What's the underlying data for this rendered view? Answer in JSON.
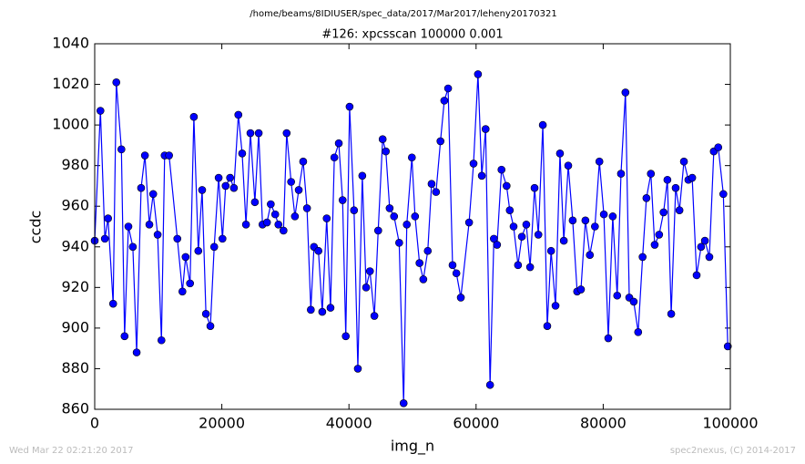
{
  "chart_data": {
    "type": "line",
    "title": "/home/beams/8IDIUSER/spec_data/2017/Mar2017/leheny20170321",
    "subtitle": "#126: xpcsscan 100000 0.001",
    "xlabel": "img_n",
    "ylabel": "ccdc",
    "footer_left": "Wed Mar 22 02:21:20 2017",
    "footer_right": "spec2nexus, (C) 2014-2017",
    "xlim": [
      0,
      100000
    ],
    "xticks": [
      0,
      20000,
      40000,
      60000,
      80000,
      100000
    ],
    "ylim": [
      860,
      1040
    ],
    "yticks": [
      860,
      880,
      900,
      920,
      940,
      960,
      980,
      1000,
      1020,
      1040
    ],
    "grid": false,
    "x": [
      0,
      900,
      1600,
      2100,
      2900,
      3400,
      4200,
      4700,
      5300,
      6000,
      6600,
      7300,
      7900,
      8600,
      9200,
      9900,
      10500,
      11000,
      11700,
      13000,
      13800,
      14300,
      15000,
      15600,
      16300,
      16900,
      17500,
      18200,
      18800,
      19500,
      20100,
      20600,
      21300,
      21900,
      22600,
      23200,
      23800,
      24500,
      25200,
      25800,
      26400,
      27100,
      27700,
      28400,
      28900,
      29700,
      30200,
      30900,
      31500,
      32100,
      32800,
      33400,
      34000,
      34500,
      35200,
      35800,
      36500,
      37100,
      37700,
      38400,
      39000,
      39500,
      40100,
      40800,
      41400,
      42100,
      42700,
      43300,
      44000,
      44600,
      45300,
      45800,
      46400,
      47100,
      47900,
      48600,
      49100,
      49900,
      50400,
      51100,
      51700,
      52400,
      53000,
      53700,
      54400,
      55000,
      55600,
      56300,
      56900,
      57600,
      58900,
      59600,
      60300,
      60900,
      61500,
      62200,
      62800,
      63300,
      64000,
      64800,
      65300,
      65900,
      66600,
      67200,
      67900,
      68500,
      69200,
      69800,
      70500,
      71200,
      71800,
      72500,
      73200,
      73800,
      74500,
      75200,
      75900,
      76500,
      77200,
      77900,
      78700,
      79400,
      80100,
      80800,
      81500,
      82200,
      82800,
      83500,
      84100,
      84800,
      85500,
      86200,
      86800,
      87500,
      88100,
      88800,
      89500,
      90100,
      90700,
      91400,
      92000,
      92700,
      93400,
      94000,
      94700,
      95400,
      96000,
      96700,
      97400,
      98100,
      98900,
      99600
    ],
    "series": [
      {
        "name": "ccdc",
        "color": "#0000ff",
        "values": [
          943,
          1007,
          944,
          954,
          912,
          1021,
          988,
          896,
          950,
          940,
          888,
          969,
          985,
          951,
          966,
          946,
          894,
          985,
          985,
          944,
          918,
          935,
          922,
          1004,
          938,
          968,
          907,
          901,
          940,
          974,
          944,
          970,
          974,
          969,
          1005,
          986,
          951,
          996,
          962,
          996,
          951,
          952,
          961,
          956,
          951,
          948,
          996,
          972,
          955,
          968,
          982,
          959,
          909,
          940,
          938,
          908,
          954,
          910,
          984,
          991,
          963,
          896,
          1009,
          958,
          880,
          975,
          920,
          928,
          906,
          948,
          993,
          987,
          959,
          955,
          942,
          863,
          951,
          984,
          955,
          932,
          924,
          938,
          971,
          967,
          992,
          1012,
          1018,
          931,
          927,
          915,
          952,
          981,
          1025,
          975,
          998,
          872,
          944,
          941,
          978,
          970,
          958,
          950,
          931,
          945,
          951,
          930,
          969,
          946,
          1000,
          901,
          938,
          911,
          986,
          943,
          980,
          953,
          918,
          919,
          953,
          936,
          950,
          982,
          956,
          895,
          955,
          916,
          976,
          1016,
          915,
          913,
          898,
          935,
          964,
          976,
          941,
          946,
          957,
          973,
          907,
          969,
          958,
          982,
          973,
          974,
          926,
          940,
          943,
          935,
          987,
          989,
          966,
          891
        ]
      }
    ]
  }
}
